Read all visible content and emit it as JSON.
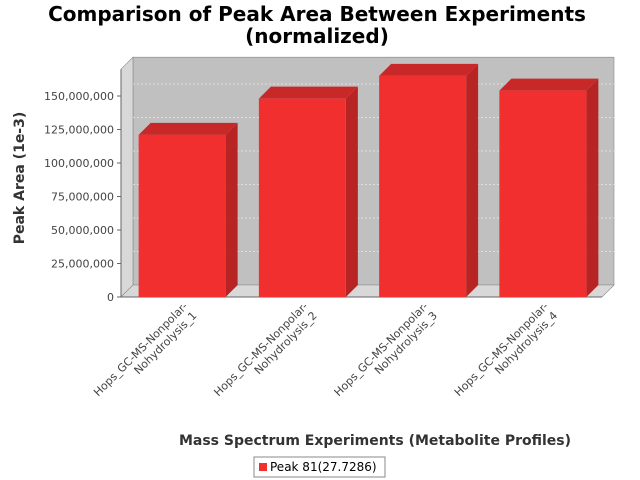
{
  "chart_data": {
    "type": "bar",
    "title_lines": [
      "Comparison of Peak Area Between Experiments",
      "(normalized)"
    ],
    "xlabel": "Mass Spectrum Experiments (Metabolite Profiles)",
    "ylabel": "Peak Area (1e-3)",
    "categories": [
      "Hops_GC-MS-Nonpolar-Nohydrolysis_1",
      "Hops_GC-MS-Nonpolar-Nohydrolysis_2",
      "Hops_GC-MS-Nonpolar-Nohydrolysis_3",
      "Hops_GC-MS-Nonpolar-Nohydrolysis_4"
    ],
    "category_lines": [
      [
        "Hops_GC-MS-Nonpolar-",
        "Nohydrolysis_1"
      ],
      [
        "Hops_GC-MS-Nonpolar-",
        "Nohydrolysis_2"
      ],
      [
        "Hops_GC-MS-Nonpolar-",
        "Nohydrolysis_3"
      ],
      [
        "Hops_GC-MS-Nonpolar-",
        "Nohydrolysis_4"
      ]
    ],
    "series": [
      {
        "name": "Peak 81(27.7286)",
        "values": [
          121000000,
          148000000,
          165000000,
          154000000
        ],
        "color": "#f22f2f"
      }
    ],
    "yticks": [
      0,
      25000000,
      50000000,
      75000000,
      100000000,
      125000000,
      150000000
    ],
    "ytick_labels": [
      "0",
      "25,000,000",
      "50,000,000",
      "75,000,000",
      "100,000,000",
      "125,000,000",
      "150,000,000"
    ],
    "ylim": [
      0,
      170000000
    ],
    "grid": true,
    "legend_position": "bottom",
    "colors": {
      "plot_background": "#c0c0c0",
      "bar": "#f22f2f",
      "bar_side": "#b82424",
      "bar_top": "#c82828"
    }
  }
}
